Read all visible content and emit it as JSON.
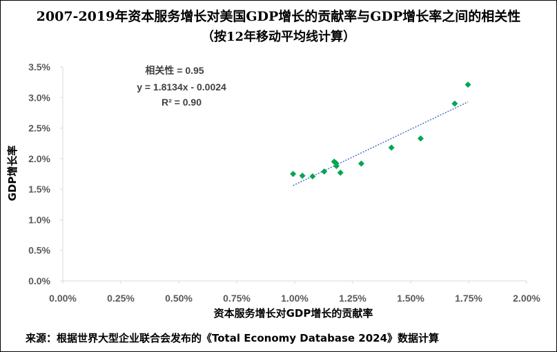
{
  "title": "2007-2019年资本服务增长对美国GDP增长的贡献率与GDP增长率之间的相关性",
  "subtitle": "（按12年移动平均线计算）",
  "source": "来源：根据世界大型企业联合会发布的《Total Economy Database 2024》数据计算",
  "annotation": {
    "correlation": "相关性 = 0.95",
    "equation": "y = 1.8134x - 0.0024",
    "r2": "R² = 0.90"
  },
  "colors": {
    "point": "#00A651",
    "trendline": "#4472C4",
    "axis": "#d9d9d9"
  },
  "chart_data": {
    "type": "scatter",
    "title": "2007-2019年资本服务增长对美国GDP增长的贡献率与GDP增长率之间的相关性",
    "subtitle": "（按12年移动平均线计算）",
    "xlabel": "资本服务增长对GDP增长的贡献率",
    "ylabel": "GDP增长率",
    "xlim": [
      0,
      0.02
    ],
    "ylim": [
      0,
      0.035
    ],
    "xticks": [
      "0.00%",
      "0.25%",
      "0.50%",
      "0.75%",
      "1.00%",
      "1.25%",
      "1.50%",
      "1.75%",
      "2.00%"
    ],
    "yticks": [
      "0.0%",
      "0.5%",
      "1.0%",
      "1.5%",
      "2.0%",
      "2.5%",
      "3.0%",
      "3.5%"
    ],
    "grid": false,
    "points": [
      {
        "x": 0.00993,
        "y": 0.0175
      },
      {
        "x": 0.01033,
        "y": 0.0172
      },
      {
        "x": 0.01077,
        "y": 0.0171
      },
      {
        "x": 0.01127,
        "y": 0.0179
      },
      {
        "x": 0.0117,
        "y": 0.0195
      },
      {
        "x": 0.01177,
        "y": 0.0193
      },
      {
        "x": 0.0118,
        "y": 0.0188
      },
      {
        "x": 0.01197,
        "y": 0.0177
      },
      {
        "x": 0.01287,
        "y": 0.0192
      },
      {
        "x": 0.01417,
        "y": 0.0218
      },
      {
        "x": 0.01543,
        "y": 0.0233
      },
      {
        "x": 0.0169,
        "y": 0.029
      },
      {
        "x": 0.01747,
        "y": 0.0321
      }
    ],
    "trendline": {
      "slope": 1.8134,
      "intercept": -0.0024,
      "x_range": [
        0.00993,
        0.01747
      ]
    }
  }
}
